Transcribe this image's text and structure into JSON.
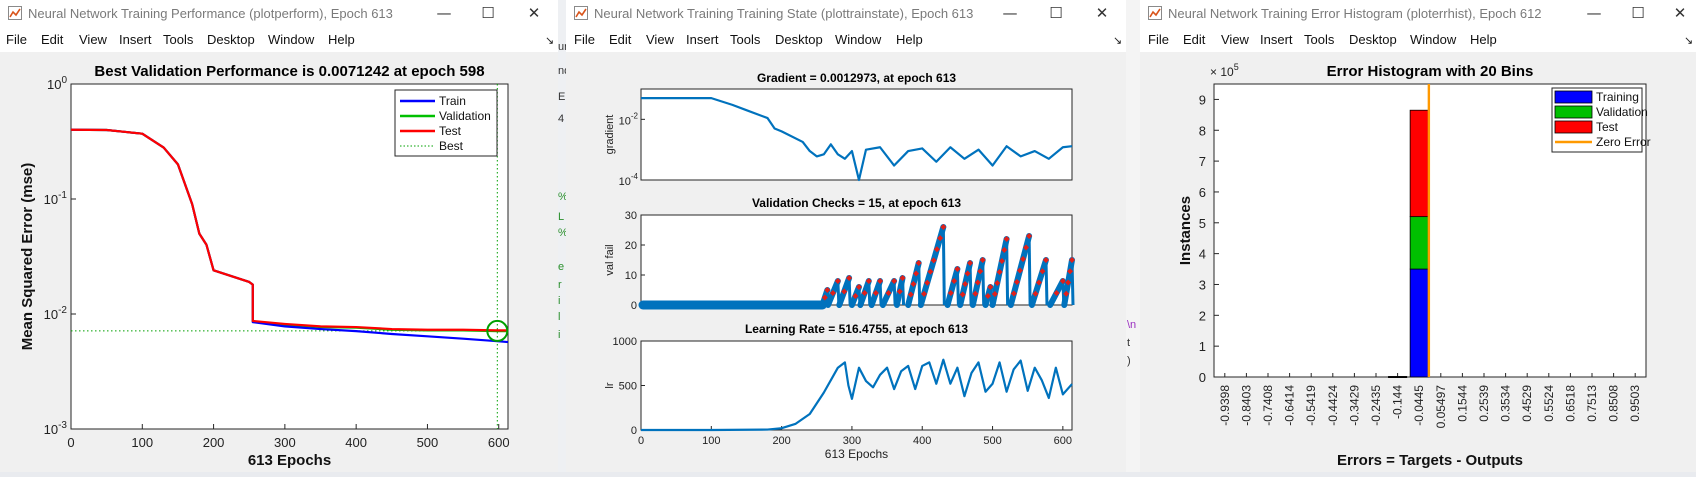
{
  "colors": {
    "train": "#0000ff",
    "validation": "#00c000",
    "test": "#ff0000",
    "best": "#00a000",
    "line": "#0072bd",
    "zero": "#ff9900",
    "marker": "#e0201a"
  },
  "menu": [
    "File",
    "Edit",
    "View",
    "Insert",
    "Tools",
    "Desktop",
    "Window",
    "Help"
  ],
  "window_controls": {
    "minimize": "—",
    "maximize": "☐",
    "close": "✕"
  },
  "window1": {
    "title": "Neural Network Training Performance (plotperform), Epoch 613",
    "chart_data": {
      "type": "line",
      "title": "Best Validation Performance is 0.0071242 at epoch 598",
      "xlabel": "613 Epochs",
      "ylabel": "Mean Squared Error  (mse)",
      "xlim": [
        0,
        613
      ],
      "ylim": [
        0.001,
        1
      ],
      "yscale": "log",
      "xticks": [
        "0",
        "100",
        "200",
        "300",
        "400",
        "500",
        "600"
      ],
      "xtick_values": [
        0,
        100,
        200,
        300,
        400,
        500,
        600
      ],
      "yticks": [
        {
          "base": "10",
          "exp": "0",
          "v": 1
        },
        {
          "base": "10",
          "exp": "-1",
          "v": 0.1
        },
        {
          "base": "10",
          "exp": "-2",
          "v": 0.01
        },
        {
          "base": "10",
          "exp": "-3",
          "v": 0.001
        }
      ],
      "legend": [
        "Train",
        "Validation",
        "Test",
        "Best"
      ],
      "legend_position": "top-right",
      "best": {
        "epoch": 598,
        "value": 0.0071242
      },
      "series": [
        {
          "name": "Train",
          "x": [
            0,
            50,
            100,
            130,
            150,
            170,
            180,
            190,
            200,
            250,
            255,
            258,
            300,
            350,
            400,
            450,
            500,
            550,
            598,
            613
          ],
          "y": [
            0.4,
            0.398,
            0.37,
            0.28,
            0.2,
            0.09,
            0.05,
            0.04,
            0.024,
            0.019,
            0.018,
            0.0085,
            0.0078,
            0.0074,
            0.0071,
            0.0067,
            0.0064,
            0.0061,
            0.0058,
            0.0057
          ]
        },
        {
          "name": "Validation",
          "x": [
            0,
            50,
            100,
            130,
            150,
            170,
            180,
            190,
            200,
            250,
            255,
            258,
            300,
            350,
            400,
            450,
            500,
            550,
            598,
            613
          ],
          "y": [
            0.4,
            0.398,
            0.37,
            0.28,
            0.2,
            0.09,
            0.05,
            0.04,
            0.024,
            0.019,
            0.018,
            0.0086,
            0.0081,
            0.0077,
            0.0076,
            0.0073,
            0.0072,
            0.0072,
            0.0071,
            0.0071
          ]
        },
        {
          "name": "Test",
          "x": [
            0,
            50,
            100,
            130,
            150,
            170,
            180,
            190,
            200,
            250,
            255,
            258,
            300,
            350,
            400,
            450,
            500,
            550,
            598,
            613
          ],
          "y": [
            0.4,
            0.398,
            0.37,
            0.28,
            0.2,
            0.09,
            0.05,
            0.04,
            0.024,
            0.019,
            0.018,
            0.0087,
            0.0082,
            0.0078,
            0.0077,
            0.0074,
            0.0073,
            0.0073,
            0.0072,
            0.0072
          ]
        }
      ]
    }
  },
  "window2": {
    "title": "Neural Network Training Training State (plottrainstate), Epoch 613",
    "chart_data": [
      {
        "type": "line",
        "title": "Gradient = 0.0012973, at epoch 613",
        "ylabel": "gradient",
        "yscale": "log",
        "xlim": [
          0,
          613
        ],
        "ylim": [
          0.0001,
          0.1
        ],
        "yticks": [
          {
            "base": "10",
            "exp": "-2",
            "v": 0.01
          },
          {
            "base": "10",
            "exp": "-4",
            "v": 0.0001
          }
        ],
        "x": [
          0,
          50,
          100,
          130,
          150,
          180,
          190,
          200,
          230,
          240,
          250,
          260,
          270,
          280,
          290,
          300,
          310,
          320,
          340,
          360,
          380,
          400,
          420,
          440,
          460,
          480,
          500,
          520,
          540,
          560,
          580,
          600,
          613
        ],
        "y": [
          0.05,
          0.05,
          0.05,
          0.03,
          0.02,
          0.011,
          0.005,
          0.004,
          0.0018,
          0.0009,
          0.0006,
          0.0007,
          0.0015,
          0.0007,
          0.0005,
          0.0009,
          0.0001,
          0.001,
          0.0012,
          0.0003,
          0.0009,
          0.0011,
          0.0004,
          0.0012,
          0.0005,
          0.001,
          0.0003,
          0.0013,
          0.0006,
          0.0009,
          0.0005,
          0.0012,
          0.0013
        ]
      },
      {
        "type": "scatter",
        "title": "Validation Checks = 15, at epoch 613",
        "ylabel": "val fail",
        "xlim": [
          0,
          613
        ],
        "ylim": [
          0,
          30
        ],
        "yticks": [
          "0",
          "10",
          "20",
          "30"
        ],
        "ytick_values": [
          0,
          10,
          20,
          30
        ],
        "peaks": [
          {
            "start": 258,
            "end": 265,
            "peak": 5
          },
          {
            "start": 266,
            "end": 280,
            "peak": 8
          },
          {
            "start": 282,
            "end": 296,
            "peak": 9
          },
          {
            "start": 300,
            "end": 310,
            "peak": 6
          },
          {
            "start": 312,
            "end": 324,
            "peak": 8
          },
          {
            "start": 328,
            "end": 340,
            "peak": 8
          },
          {
            "start": 344,
            "end": 360,
            "peak": 8
          },
          {
            "start": 364,
            "end": 372,
            "peak": 9
          },
          {
            "start": 380,
            "end": 395,
            "peak": 14
          },
          {
            "start": 398,
            "end": 430,
            "peak": 26
          },
          {
            "start": 436,
            "end": 450,
            "peak": 12
          },
          {
            "start": 454,
            "end": 468,
            "peak": 14
          },
          {
            "start": 472,
            "end": 486,
            "peak": 15
          },
          {
            "start": 490,
            "end": 497,
            "peak": 6
          },
          {
            "start": 500,
            "end": 520,
            "peak": 22
          },
          {
            "start": 526,
            "end": 552,
            "peak": 23
          },
          {
            "start": 556,
            "end": 576,
            "peak": 15
          },
          {
            "start": 582,
            "end": 600,
            "peak": 8
          },
          {
            "start": 602,
            "end": 613,
            "peak": 15
          }
        ]
      },
      {
        "type": "line",
        "title": "Learning Rate = 516.4755, at epoch 613",
        "ylabel": "lr",
        "xlabel": "613 Epochs",
        "xlim": [
          0,
          613
        ],
        "ylim": [
          0,
          1000
        ],
        "xticks": [
          "0",
          "100",
          "200",
          "300",
          "400",
          "500",
          "600"
        ],
        "xtick_values": [
          0,
          100,
          200,
          300,
          400,
          500,
          600
        ],
        "yticks": [
          "0",
          "500",
          "1000"
        ],
        "ytick_values": [
          0,
          500,
          1000
        ],
        "x": [
          0,
          100,
          180,
          200,
          220,
          240,
          260,
          270,
          280,
          290,
          295,
          300,
          310,
          320,
          330,
          340,
          350,
          360,
          370,
          380,
          390,
          400,
          410,
          420,
          430,
          440,
          450,
          460,
          470,
          480,
          490,
          500,
          510,
          520,
          530,
          540,
          550,
          560,
          570,
          580,
          590,
          600,
          613
        ],
        "y": [
          0,
          0,
          5,
          20,
          70,
          180,
          420,
          560,
          700,
          760,
          500,
          350,
          700,
          550,
          480,
          620,
          700,
          460,
          660,
          720,
          460,
          720,
          760,
          520,
          790,
          520,
          700,
          380,
          640,
          760,
          430,
          520,
          760,
          430,
          680,
          780,
          440,
          700,
          560,
          360,
          700,
          400,
          516
        ]
      }
    ]
  },
  "window3": {
    "title": "Neural Network Training Error Histogram (ploterrhist), Epoch 612",
    "chart_data": {
      "type": "bar",
      "title": "Error Histogram with 20 Bins",
      "xlabel": "Errors = Targets - Outputs",
      "ylabel": "Instances",
      "y_multiplier": "× 10",
      "y_multiplier_exp": "5",
      "categories": [
        "-0.9398",
        "-0.8403",
        "-0.7408",
        "-0.6414",
        "-0.5419",
        "-0.4424",
        "-0.3429",
        "-0.2435",
        "-0.144",
        "-0.0445",
        "0.05497",
        "0.1544",
        "0.2539",
        "0.3534",
        "0.4529",
        "0.5524",
        "0.6518",
        "0.7513",
        "0.8508",
        "0.9503"
      ],
      "ylim": [
        0,
        950000
      ],
      "yticks": [
        "0",
        "1",
        "2",
        "3",
        "4",
        "5",
        "6",
        "7",
        "8",
        "9"
      ],
      "ytick_values": [
        0,
        100000,
        200000,
        300000,
        400000,
        500000,
        600000,
        700000,
        800000,
        900000
      ],
      "series": [
        {
          "name": "Training",
          "values": [
            0,
            0,
            0,
            0,
            0,
            0,
            0,
            0,
            1000,
            350000,
            0,
            0,
            0,
            0,
            0,
            0,
            0,
            0,
            0,
            0
          ]
        },
        {
          "name": "Validation",
          "values": [
            0,
            0,
            0,
            0,
            0,
            0,
            0,
            0,
            200,
            170000,
            0,
            0,
            0,
            0,
            0,
            0,
            0,
            0,
            0,
            0
          ]
        },
        {
          "name": "Test",
          "values": [
            0,
            0,
            0,
            0,
            0,
            0,
            0,
            0,
            200,
            345000,
            0,
            0,
            0,
            0,
            0,
            0,
            0,
            0,
            0,
            0
          ]
        }
      ],
      "zero_error_x": 0,
      "legend": [
        "Training",
        "Validation",
        "Test",
        "Zero Error"
      ],
      "legend_position": "top-right"
    }
  },
  "background_fragments": {
    "left_gap": [
      "ur",
      "nd",
      "E",
      "4",
      "%",
      "L",
      "%",
      "e",
      "r",
      "i",
      "l",
      "i"
    ],
    "right_gap": [
      "\\n",
      "t",
      ")"
    ]
  }
}
